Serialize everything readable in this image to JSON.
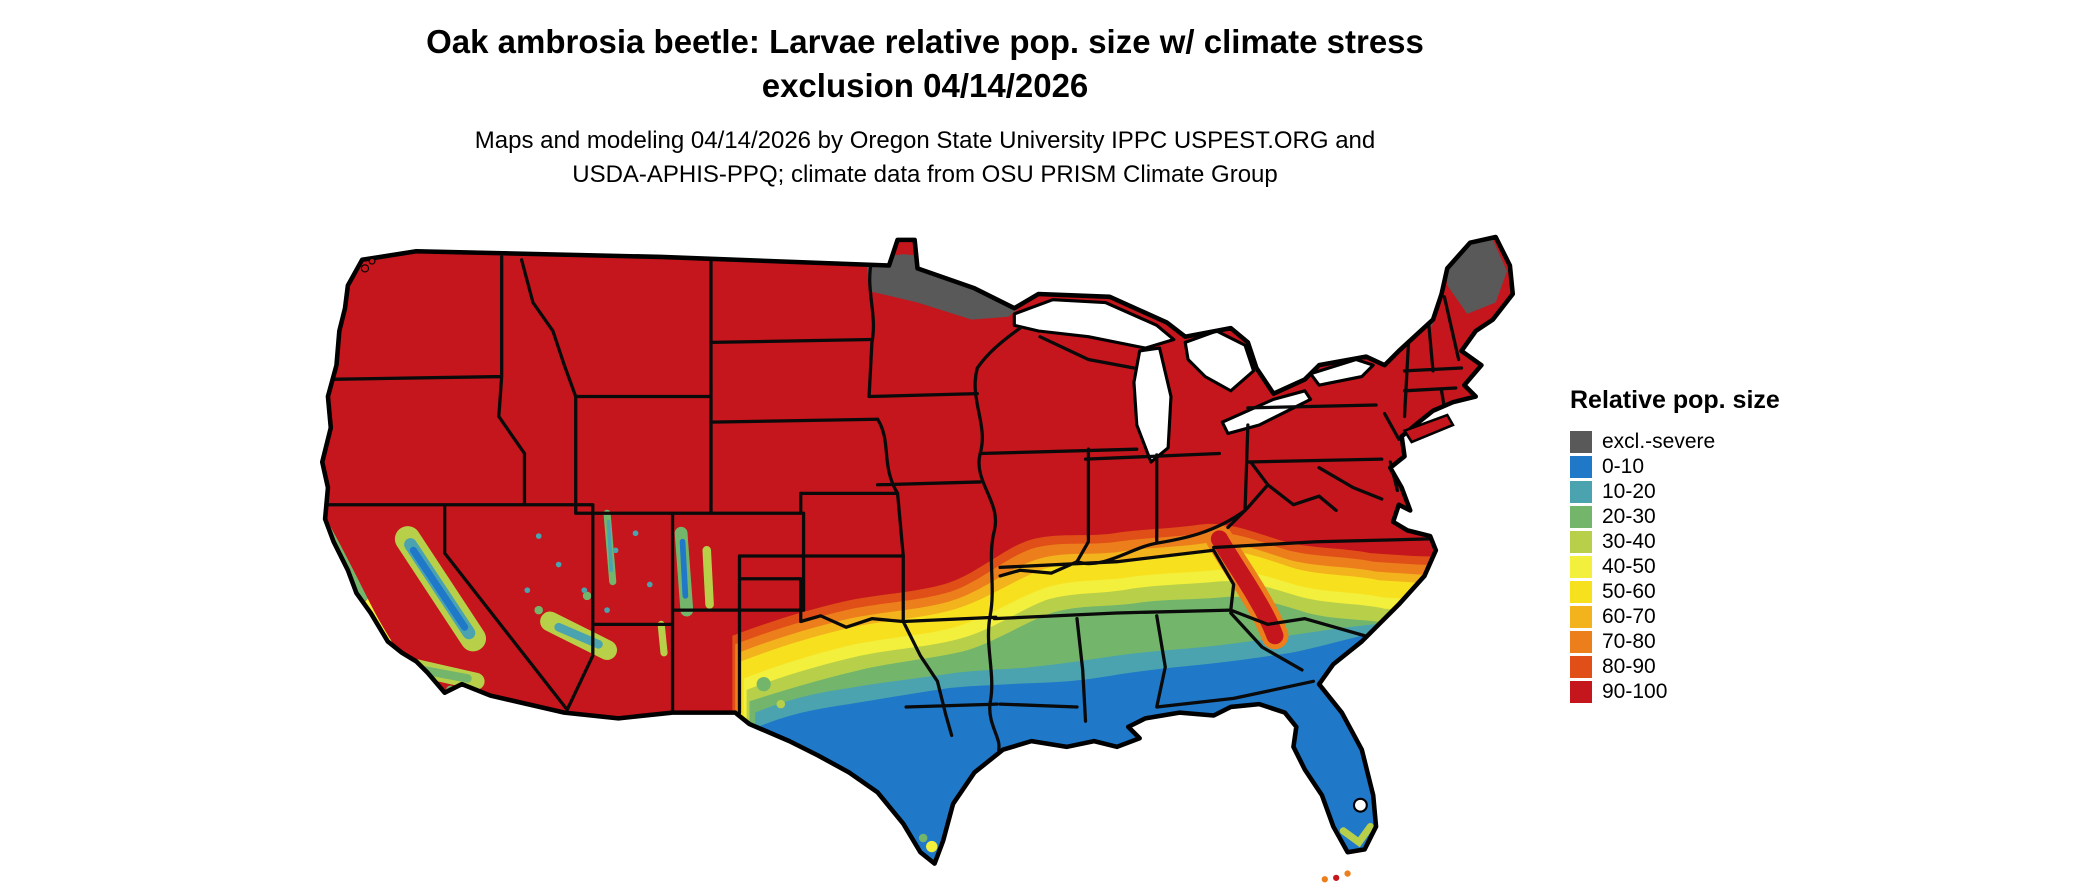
{
  "title": {
    "line1": "Oak ambrosia beetle: Larvae relative pop. size w/ climate stress",
    "line2": "exclusion 04/14/2026"
  },
  "subtitle": {
    "line1": "Maps and modeling 04/14/2026 by Oregon State University IPPC USPEST.ORG and",
    "line2": "USDA-APHIS-PPQ; climate data from OSU PRISM Climate Group"
  },
  "legend": {
    "title": "Relative pop. size",
    "items": [
      {
        "label": "excl.-severe",
        "color": "#595959"
      },
      {
        "label": "0-10",
        "color": "#1f78c8"
      },
      {
        "label": "10-20",
        "color": "#4aa3af"
      },
      {
        "label": "20-30",
        "color": "#74b56c"
      },
      {
        "label": "30-40",
        "color": "#b8d049"
      },
      {
        "label": "40-50",
        "color": "#f3ef3d"
      },
      {
        "label": "50-60",
        "color": "#f7e11e"
      },
      {
        "label": "60-70",
        "color": "#f3b31c"
      },
      {
        "label": "70-80",
        "color": "#ec7f1b"
      },
      {
        "label": "80-90",
        "color": "#e04f17"
      },
      {
        "label": "90-100",
        "color": "#c4161c"
      }
    ]
  }
}
